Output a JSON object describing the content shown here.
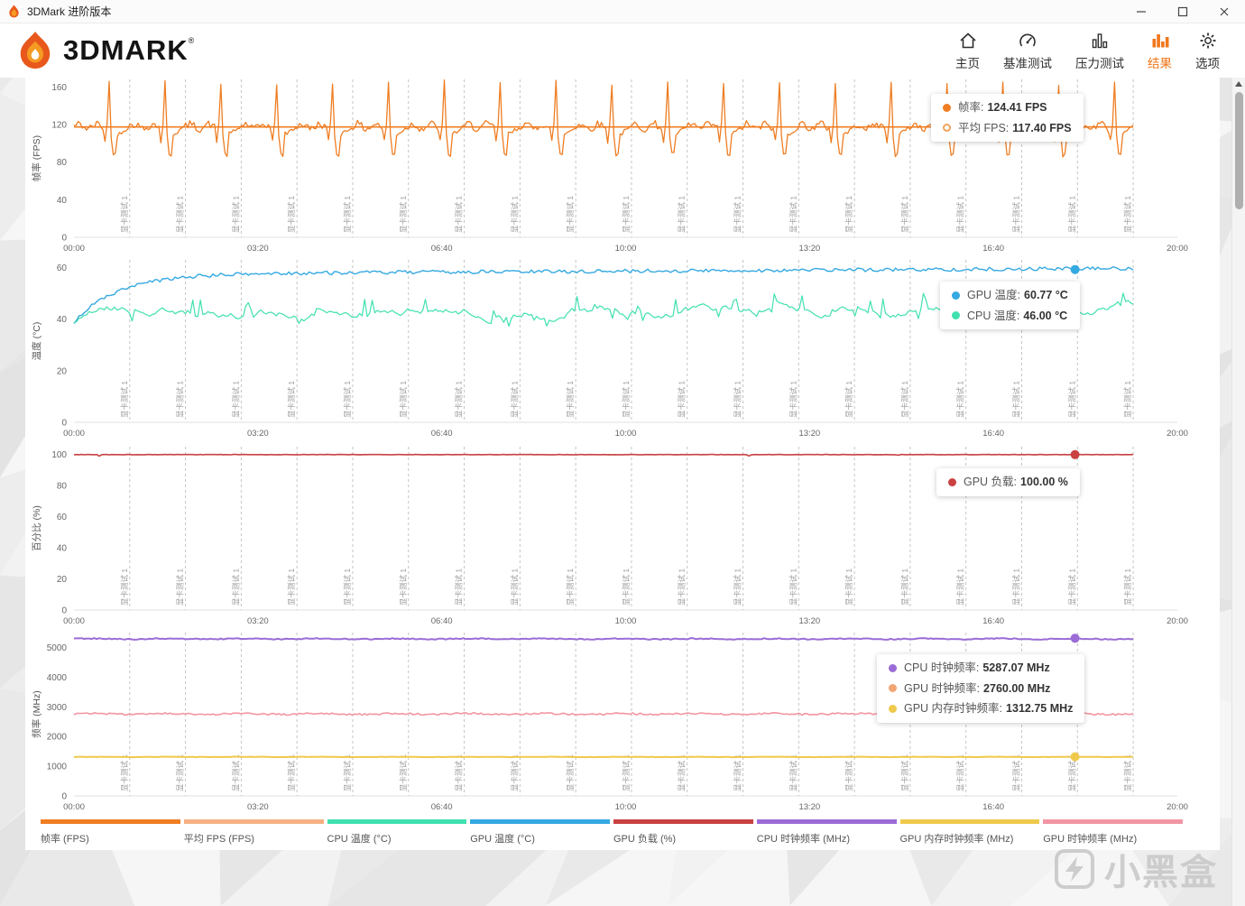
{
  "window": {
    "title": "3DMark 进阶版本",
    "controls": [
      {
        "name": "minimize"
      },
      {
        "name": "maximize"
      },
      {
        "name": "close"
      }
    ]
  },
  "header": {
    "logo_text": "3DMARK",
    "logo_reg": "®",
    "nav": [
      {
        "label": "主页",
        "active": false
      },
      {
        "label": "基准测试",
        "active": false
      },
      {
        "label": "压力测试",
        "active": false
      },
      {
        "label": "结果",
        "active": true
      },
      {
        "label": "选项",
        "active": false
      }
    ]
  },
  "accent_color": "#F0761B",
  "watermark": {
    "text": "小黑盒"
  },
  "chart_data": {
    "type": "line",
    "x_ticks": [
      "00:00",
      "03:20",
      "06:40",
      "10:00",
      "13:20",
      "16:40",
      "20:00"
    ],
    "x_range_seconds": [
      0,
      1200
    ],
    "section_label": "显卡测试 1",
    "section_count": 19,
    "charts": [
      {
        "ylabel": "帧率 (FPS)",
        "ylim": [
          0,
          168
        ],
        "yticks": [
          0,
          40,
          80,
          120,
          160
        ],
        "series": [
          {
            "name": "帧率",
            "unit": "FPS",
            "current": 124.41,
            "color": "#EF7D22",
            "width": 1.3,
            "marker": true,
            "synth": {
              "kind": "fps",
              "base": 118,
              "spike": 165,
              "dip": 88,
              "noise": 4
            }
          },
          {
            "name": "平均 FPS",
            "unit": "FPS",
            "current": 117.4,
            "color": "#EF7D22",
            "width": 1.6,
            "marker": false,
            "synth": {
              "kind": "flat",
              "base": 117.4,
              "noise": 0
            }
          }
        ],
        "tooltip": {
          "rows": [
            {
              "label": "帧率",
              "value": "124.41 FPS",
              "dot": "#EF7D22",
              "hollow": false
            },
            {
              "label": "平均 FPS",
              "value": "117.40 FPS",
              "dot": "#F0A35E",
              "hollow": true
            }
          ]
        }
      },
      {
        "ylabel": "温度 (°C)",
        "ylim": [
          0,
          63
        ],
        "yticks": [
          0,
          20,
          40,
          60
        ],
        "series": [
          {
            "name": "GPU 温度",
            "unit": "°C",
            "current": 60.77,
            "color": "#35A9E1",
            "width": 1.4,
            "marker": true,
            "synth": {
              "kind": "ramp",
              "start": 39,
              "plateau": 57.5,
              "rate": 24,
              "drift": 2.2,
              "noise": 0.7
            }
          },
          {
            "name": "CPU 温度",
            "unit": "°C",
            "current": 46.0,
            "color": "#40E0B0",
            "width": 1.2,
            "marker": true,
            "synth": {
              "kind": "wander",
              "base": 44,
              "noise": 2.5,
              "spike": 6,
              "min": 37,
              "max": 52
            }
          }
        ],
        "tooltip": {
          "rows": [
            {
              "label": "GPU 温度",
              "value": "60.77 °C",
              "dot": "#35A9E1",
              "hollow": false
            },
            {
              "label": "CPU 温度",
              "value": "46.00 °C",
              "dot": "#40E0B0",
              "hollow": false
            }
          ]
        }
      },
      {
        "ylabel": "百分比 (%)",
        "ylim": [
          0,
          105
        ],
        "yticks": [
          0,
          20,
          40,
          60,
          80,
          100
        ],
        "series": [
          {
            "name": "GPU 负载",
            "unit": "%",
            "current": 100.0,
            "color": "#C94141",
            "width": 1.6,
            "marker": true,
            "synth": {
              "kind": "load",
              "base": 100,
              "noise": 0.4
            }
          }
        ],
        "tooltip": {
          "rows": [
            {
              "label": "GPU 负载",
              "value": "100.00 %",
              "dot": "#C94141",
              "hollow": false
            }
          ]
        }
      },
      {
        "ylabel": "频率 (MHz)",
        "ylim": [
          0,
          5500
        ],
        "yticks": [
          0,
          1000,
          2000,
          3000,
          4000,
          5000
        ],
        "series": [
          {
            "name": "CPU 时钟频率",
            "unit": "MHz",
            "current": 5287.07,
            "color": "#9B6CD6",
            "width": 2,
            "marker": true,
            "synth": {
              "kind": "flat",
              "base": 5287,
              "noise": 18
            }
          },
          {
            "name": "GPU 时钟频率",
            "unit": "MHz",
            "current": 2760.0,
            "color": "#F295A2",
            "width": 1.6,
            "marker": true,
            "synth": {
              "kind": "flat",
              "base": 2760,
              "noise": 28
            }
          },
          {
            "name": "GPU 内存时钟频率",
            "unit": "MHz",
            "current": 1312.75,
            "color": "#EFC94C",
            "width": 2,
            "marker": true,
            "synth": {
              "kind": "flat",
              "base": 1313,
              "noise": 6
            }
          }
        ],
        "tooltip": {
          "rows": [
            {
              "label": "CPU 时钟频率",
              "value": "5287.07 MHz",
              "dot": "#9B6CD6",
              "hollow": false
            },
            {
              "label": "GPU 时钟频率",
              "value": "2760.00 MHz",
              "dot": "#F2A573",
              "hollow": false
            },
            {
              "label": "GPU 内存时钟频率",
              "value": "1312.75 MHz",
              "dot": "#EFC94C",
              "hollow": false
            }
          ]
        }
      }
    ]
  },
  "legend": [
    {
      "label": "帧率 (FPS)",
      "color": "#EF7D22"
    },
    {
      "label": "平均 FPS (FPS)",
      "color": "#F5B183"
    },
    {
      "label": "CPU 温度 (°C)",
      "color": "#40E0B0"
    },
    {
      "label": "GPU 温度 (°C)",
      "color": "#35A9E1"
    },
    {
      "label": "GPU 负载 (%)",
      "color": "#C94141"
    },
    {
      "label": "CPU 时钟频率 (MHz)",
      "color": "#9B6CD6"
    },
    {
      "label": "GPU 内存时钟频率 (MHz)",
      "color": "#EFC94C"
    },
    {
      "label": "GPU 时钟频率 (MHz)",
      "color": "#F295A2"
    }
  ]
}
